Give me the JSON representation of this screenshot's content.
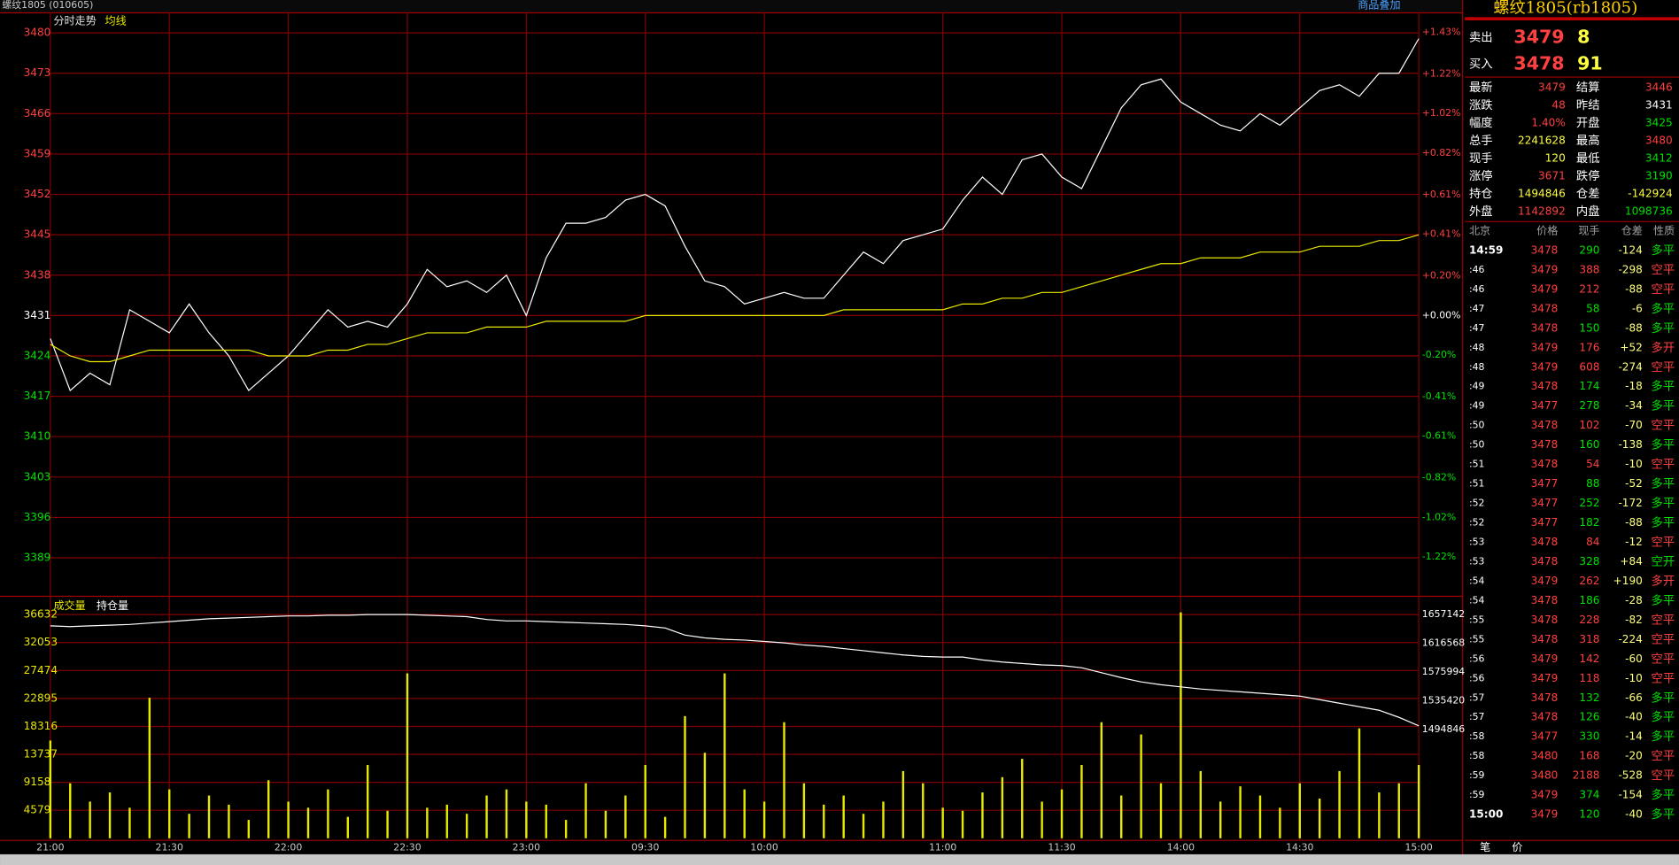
{
  "header": {
    "title": "螺纹1805 (010605)",
    "overlay_button": "商品叠加"
  },
  "chart_data": [
    {
      "type": "line",
      "title": "分时走势",
      "x": [
        0,
        5,
        10,
        15,
        20,
        25,
        30,
        35,
        40,
        45,
        50,
        55,
        60,
        65,
        70,
        75,
        80,
        85,
        90,
        95,
        100,
        105,
        110,
        115,
        120,
        125,
        130,
        135,
        140,
        145,
        150,
        155,
        160,
        165,
        170,
        175,
        180,
        185,
        190,
        195,
        200,
        205,
        210,
        215,
        220,
        225,
        230,
        235,
        240,
        245,
        250,
        255,
        260,
        265,
        270,
        275,
        280,
        285,
        290,
        295,
        300,
        305,
        310,
        315,
        320,
        325,
        330,
        335,
        340,
        345
      ],
      "series": [
        {
          "color": "#ffffff",
          "values": [
            3427,
            3418,
            3421,
            3419,
            3432,
            3430,
            3428,
            3433,
            3428,
            3424,
            3418,
            3421,
            3424,
            3428,
            3432,
            3429,
            3430,
            3429,
            3433,
            3439,
            3436,
            3437,
            3435,
            3438,
            3431,
            3441,
            3447,
            3447,
            3448,
            3451,
            3452,
            3450,
            3443,
            3437,
            3436,
            3433,
            3434,
            3435,
            3434,
            3434,
            3438,
            3442,
            3440,
            3444,
            3445,
            3446,
            3451,
            3455,
            3452,
            3458,
            3459,
            3455,
            3453,
            3460,
            3467,
            3471,
            3472,
            3468,
            3466,
            3464,
            3463,
            3466,
            3464,
            3467,
            3470,
            3471,
            3469,
            3473,
            3473,
            3479
          ]
        },
        {
          "name": "均线",
          "color": "#e8e800",
          "values": [
            3426,
            3424,
            3423,
            3423,
            3424,
            3425,
            3425,
            3425,
            3425,
            3425,
            3425,
            3424,
            3424,
            3424,
            3425,
            3425,
            3426,
            3426,
            3427,
            3428,
            3428,
            3428,
            3429,
            3429,
            3429,
            3430,
            3430,
            3430,
            3430,
            3430,
            3431,
            3431,
            3431,
            3431,
            3431,
            3431,
            3431,
            3431,
            3431,
            3431,
            3432,
            3432,
            3432,
            3432,
            3432,
            3432,
            3433,
            3433,
            3434,
            3434,
            3435,
            3435,
            3436,
            3437,
            3438,
            3439,
            3440,
            3440,
            3441,
            3441,
            3441,
            3442,
            3442,
            3442,
            3443,
            3443,
            3443,
            3444,
            3444,
            3445
          ]
        }
      ],
      "xlim": [
        0,
        345
      ],
      "xticks": [
        {
          "value": 0,
          "label": "21:00"
        },
        {
          "value": 30,
          "label": "21:30"
        },
        {
          "value": 60,
          "label": "22:00"
        },
        {
          "value": 90,
          "label": "22:30"
        },
        {
          "value": 120,
          "label": "23:00"
        },
        {
          "value": 150,
          "label": "09:30"
        },
        {
          "value": 180,
          "label": "10:00"
        },
        {
          "value": 225,
          "label": "11:00"
        },
        {
          "value": 255,
          "label": "11:30"
        },
        {
          "value": 285,
          "label": "14:00"
        },
        {
          "value": 315,
          "label": "14:30"
        },
        {
          "value": 345,
          "label": "15:00"
        }
      ],
      "ylim": [
        3382.7,
        3480.5
      ],
      "yticks": [
        3389,
        3396,
        3403,
        3410,
        3417,
        3424,
        3431,
        3438,
        3445,
        3452,
        3459,
        3466,
        3473,
        3480
      ],
      "y2lim": [
        -1.408,
        1.442
      ],
      "y2ticks": [
        {
          "value": -1.22,
          "label": "-1.22%"
        },
        {
          "value": -1.02,
          "label": "-1.02%"
        },
        {
          "value": -0.82,
          "label": "-0.82%"
        },
        {
          "value": -0.61,
          "label": "-0.61%"
        },
        {
          "value": -0.41,
          "label": "-0.41%"
        },
        {
          "value": -0.2,
          "label": "-0.20%"
        },
        {
          "value": 0,
          "label": "+0.00%"
        },
        {
          "value": 0.2,
          "label": "+0.20%"
        },
        {
          "value": 0.41,
          "label": "+0.41%"
        },
        {
          "value": 0.61,
          "label": "+0.61%"
        },
        {
          "value": 0.82,
          "label": "+0.82%"
        },
        {
          "value": 1.02,
          "label": "+1.02%"
        },
        {
          "value": 1.22,
          "label": "+1.22%"
        },
        {
          "value": 1.43,
          "label": "+1.43%"
        }
      ],
      "grid": true
    },
    {
      "type": "bar",
      "x": [
        0,
        5,
        10,
        15,
        20,
        25,
        30,
        35,
        40,
        45,
        50,
        55,
        60,
        65,
        70,
        75,
        80,
        85,
        90,
        95,
        100,
        105,
        110,
        115,
        120,
        125,
        130,
        135,
        140,
        145,
        150,
        155,
        160,
        165,
        170,
        175,
        180,
        185,
        190,
        195,
        200,
        205,
        210,
        215,
        220,
        225,
        230,
        235,
        240,
        245,
        250,
        255,
        260,
        265,
        270,
        275,
        280,
        285,
        290,
        295,
        300,
        305,
        310,
        315,
        320,
        325,
        330,
        335,
        340,
        345
      ],
      "series": [
        {
          "name": "成交量",
          "color": "#e8e800",
          "values": [
            16000,
            9000,
            6000,
            7500,
            5000,
            23000,
            8000,
            4000,
            7000,
            5500,
            3000,
            9500,
            6000,
            5000,
            8000,
            3500,
            12000,
            4500,
            27000,
            5000,
            5500,
            4000,
            7000,
            8000,
            6000,
            5500,
            3000,
            9000,
            4500,
            7000,
            12000,
            3500,
            20000,
            14000,
            27000,
            8000,
            6000,
            19000,
            9000,
            5500,
            7000,
            4000,
            6000,
            11000,
            9000,
            5000,
            4500,
            7500,
            10000,
            13000,
            6000,
            8000,
            12000,
            19000,
            7000,
            17000,
            9000,
            37000,
            11000,
            6000,
            8500,
            7000,
            5000,
            9000,
            6500,
            11000,
            18000,
            7500,
            9000,
            12000
          ]
        },
        {
          "name": "持仓量",
          "color": "#ffffff",
          "axis": "y2",
          "values": [
            1641000,
            1640000,
            1641000,
            1642000,
            1643000,
            1645000,
            1647000,
            1649000,
            1651000,
            1652000,
            1653000,
            1654000,
            1655000,
            1655000,
            1656000,
            1656000,
            1657000,
            1657000,
            1657000,
            1656000,
            1655000,
            1654000,
            1650000,
            1648000,
            1648000,
            1647000,
            1646000,
            1645000,
            1644000,
            1643000,
            1641000,
            1638000,
            1628000,
            1624000,
            1622000,
            1621000,
            1619000,
            1617000,
            1614000,
            1612000,
            1609000,
            1606000,
            1603000,
            1600000,
            1598000,
            1597000,
            1597000,
            1593000,
            1590000,
            1588000,
            1586000,
            1585000,
            1582000,
            1575000,
            1568000,
            1562000,
            1558000,
            1555000,
            1552000,
            1550000,
            1548000,
            1546000,
            1544000,
            1542000,
            1537000,
            1532000,
            1527000,
            1522000,
            1512000,
            1500000
          ]
        }
      ],
      "xlim": [
        0,
        345
      ],
      "ylim": [
        0,
        39100
      ],
      "yticks": [
        4579,
        9158,
        13737,
        18316,
        22895,
        27474,
        32053,
        36632
      ],
      "y2lim": [
        1341566,
        1678180
      ],
      "y2ticks": [
        1494846,
        1535420,
        1575994,
        1616568,
        1657142
      ],
      "grid": true
    }
  ],
  "quote": {
    "title": "螺纹1805(rb1805)",
    "ask": {
      "label": "卖出",
      "price": "3479",
      "volume": "8"
    },
    "bid": {
      "label": "买入",
      "price": "3478",
      "volume": "91"
    },
    "stats": [
      [
        {
          "text": "最新"
        },
        {
          "text": "3479",
          "color": "#ff4040"
        },
        {
          "text": "结算"
        },
        {
          "text": "3446",
          "color": "#ff4040"
        }
      ],
      [
        {
          "text": "涨跌"
        },
        {
          "text": "48",
          "color": "#ff4040"
        },
        {
          "text": "昨结"
        },
        {
          "text": "3431",
          "color": "#ffffff"
        }
      ],
      [
        {
          "text": "幅度"
        },
        {
          "text": "1.40%",
          "color": "#ff4040"
        },
        {
          "text": "开盘"
        },
        {
          "text": "3425",
          "color": "#00e000"
        }
      ],
      [
        {
          "text": "总手"
        },
        {
          "text": "2241628",
          "color": "#ffff40"
        },
        {
          "text": "最高"
        },
        {
          "text": "3480",
          "color": "#ff4040"
        }
      ],
      [
        {
          "text": "现手"
        },
        {
          "text": "120",
          "color": "#ffff40"
        },
        {
          "text": "最低"
        },
        {
          "text": "3412",
          "color": "#00e000"
        }
      ],
      [
        {
          "text": "涨停"
        },
        {
          "text": "3671",
          "color": "#ff4040"
        },
        {
          "text": "跌停"
        },
        {
          "text": "3190",
          "color": "#00e000"
        }
      ],
      [
        {
          "text": "持仓"
        },
        {
          "text": "1494846",
          "color": "#ffff40"
        },
        {
          "text": "仓差"
        },
        {
          "text": "-142924",
          "color": "#ffff40"
        }
      ],
      [
        {
          "text": "外盘"
        },
        {
          "text": "1142892",
          "color": "#ff4040"
        },
        {
          "text": "内盘"
        },
        {
          "text": "1098736",
          "color": "#00e000"
        }
      ]
    ]
  },
  "trades": {
    "header": [
      "北京",
      "价格",
      "现手",
      "仓差",
      "性质"
    ],
    "rows": [
      {
        "time": "14:59",
        "price": "3478",
        "volume": "290",
        "oi_change": "-124",
        "nature": "多平",
        "color": "#00e000"
      },
      {
        "time": ":46",
        "price": "3479",
        "volume": "388",
        "oi_change": "-298",
        "nature": "空平",
        "color": "#ff4040"
      },
      {
        "time": ":46",
        "price": "3479",
        "volume": "212",
        "oi_change": "-88",
        "nature": "空平",
        "color": "#ff4040"
      },
      {
        "time": ":47",
        "price": "3478",
        "volume": "58",
        "oi_change": "-6",
        "nature": "多平",
        "color": "#00e000"
      },
      {
        "time": ":47",
        "price": "3478",
        "volume": "150",
        "oi_change": "-88",
        "nature": "多平",
        "color": "#00e000"
      },
      {
        "time": ":48",
        "price": "3479",
        "volume": "176",
        "oi_change": "+52",
        "nature": "多开",
        "color": "#ff4040"
      },
      {
        "time": ":48",
        "price": "3479",
        "volume": "608",
        "oi_change": "-274",
        "nature": "空平",
        "color": "#ff4040"
      },
      {
        "time": ":49",
        "price": "3478",
        "volume": "174",
        "oi_change": "-18",
        "nature": "多平",
        "color": "#00e000"
      },
      {
        "time": ":49",
        "price": "3477",
        "volume": "278",
        "oi_change": "-34",
        "nature": "多平",
        "color": "#00e000"
      },
      {
        "time": ":50",
        "price": "3478",
        "volume": "102",
        "oi_change": "-70",
        "nature": "空平",
        "color": "#ff4040"
      },
      {
        "time": ":50",
        "price": "3478",
        "volume": "160",
        "oi_change": "-138",
        "nature": "多平",
        "color": "#00e000"
      },
      {
        "time": ":51",
        "price": "3478",
        "volume": "54",
        "oi_change": "-10",
        "nature": "空平",
        "color": "#ff4040"
      },
      {
        "time": ":51",
        "price": "3477",
        "volume": "88",
        "oi_change": "-52",
        "nature": "多平",
        "color": "#00e000"
      },
      {
        "time": ":52",
        "price": "3477",
        "volume": "252",
        "oi_change": "-172",
        "nature": "多平",
        "color": "#00e000"
      },
      {
        "time": ":52",
        "price": "3477",
        "volume": "182",
        "oi_change": "-88",
        "nature": "多平",
        "color": "#00e000"
      },
      {
        "time": ":53",
        "price": "3478",
        "volume": "84",
        "oi_change": "-12",
        "nature": "空平",
        "color": "#ff4040"
      },
      {
        "time": ":53",
        "price": "3478",
        "volume": "328",
        "oi_change": "+84",
        "nature": "空开",
        "color": "#00e000"
      },
      {
        "time": ":54",
        "price": "3479",
        "volume": "262",
        "oi_change": "+190",
        "nature": "多开",
        "color": "#ff4040"
      },
      {
        "time": ":54",
        "price": "3478",
        "volume": "186",
        "oi_change": "-28",
        "nature": "多平",
        "color": "#00e000"
      },
      {
        "time": ":55",
        "price": "3478",
        "volume": "228",
        "oi_change": "-82",
        "nature": "空平",
        "color": "#ff4040"
      },
      {
        "time": ":55",
        "price": "3478",
        "volume": "318",
        "oi_change": "-224",
        "nature": "空平",
        "color": "#ff4040"
      },
      {
        "time": ":56",
        "price": "3479",
        "volume": "142",
        "oi_change": "-60",
        "nature": "空平",
        "color": "#ff4040"
      },
      {
        "time": ":56",
        "price": "3479",
        "volume": "118",
        "oi_change": "-10",
        "nature": "空平",
        "color": "#ff4040"
      },
      {
        "time": ":57",
        "price": "3478",
        "volume": "132",
        "oi_change": "-66",
        "nature": "多平",
        "color": "#00e000"
      },
      {
        "time": ":57",
        "price": "3478",
        "volume": "126",
        "oi_change": "-40",
        "nature": "多平",
        "color": "#00e000"
      },
      {
        "time": ":58",
        "price": "3477",
        "volume": "330",
        "oi_change": "-14",
        "nature": "多平",
        "color": "#00e000"
      },
      {
        "time": ":58",
        "price": "3480",
        "volume": "168",
        "oi_change": "-20",
        "nature": "空平",
        "color": "#ff4040"
      },
      {
        "time": ":59",
        "price": "3480",
        "volume": "2188",
        "oi_change": "-528",
        "nature": "空平",
        "color": "#ff4040"
      },
      {
        "time": ":59",
        "price": "3479",
        "volume": "374",
        "oi_change": "-154",
        "nature": "多平",
        "color": "#00e000"
      },
      {
        "time": "15:00",
        "price": "3479",
        "volume": "120",
        "oi_change": "-40",
        "nature": "多平",
        "color": "#00e000"
      }
    ]
  },
  "tabs": [
    "笔",
    "价"
  ]
}
